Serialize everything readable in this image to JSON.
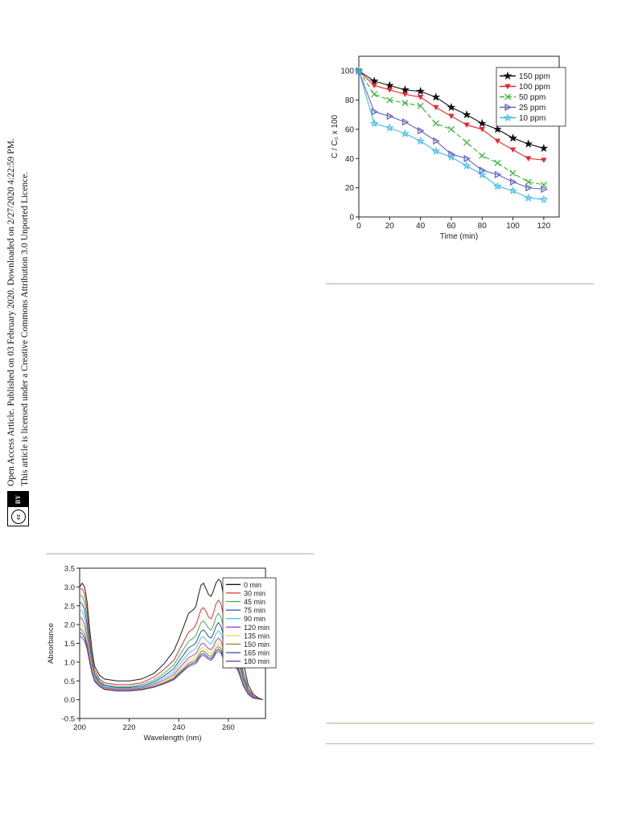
{
  "side_notice": {
    "line1": "Open Access Article. Published on 03 February 2020. Downloaded on 2/27/2020 4:22:59 PM.",
    "line2": "This article is licensed under a Creative Commons Attribution 3.0 Unported Licence.",
    "license_badge": {
      "cc": "cc",
      "by": "BY"
    }
  },
  "chart_data": [
    {
      "type": "line",
      "xlabel": "Time (min)",
      "ylabel": "C / C₀ x 100",
      "xlim": [
        0,
        130
      ],
      "ylim": [
        0,
        110
      ],
      "xticks": [
        0,
        20,
        40,
        60,
        80,
        100,
        120
      ],
      "yticks": [
        0,
        20,
        40,
        60,
        80,
        100
      ],
      "legend_position": "top-right",
      "grid": false,
      "x": [
        0,
        10,
        20,
        30,
        40,
        50,
        60,
        70,
        80,
        90,
        100,
        110,
        120
      ],
      "series": [
        {
          "name": "150 ppm",
          "color": "#111111",
          "marker": "star",
          "dash": "",
          "values": [
            100,
            93,
            90,
            87,
            86,
            82,
            75,
            70,
            64,
            60,
            54,
            50,
            47
          ]
        },
        {
          "name": "100 ppm",
          "color": "#e8262b",
          "marker": "triangle-down",
          "dash": "",
          "values": [
            100,
            90,
            87,
            84,
            82,
            75,
            69,
            63,
            60,
            52,
            46,
            40,
            39
          ]
        },
        {
          "name": "50 ppm",
          "color": "#33b333",
          "marker": "x",
          "dash": "6,3",
          "values": [
            100,
            84,
            80,
            78,
            76,
            64,
            60,
            51,
            42,
            37,
            30,
            24,
            22
          ]
        },
        {
          "name": "25 ppm",
          "color": "#6666c2",
          "marker": "triangle-right",
          "dash": "",
          "values": [
            100,
            72,
            69,
            65,
            59,
            52,
            43,
            40,
            32,
            29,
            24,
            20,
            19
          ]
        },
        {
          "name": "10 ppm",
          "color": "#3fb9ea",
          "marker": "star-open",
          "dash": "",
          "values": [
            100,
            64,
            61,
            57,
            52,
            45,
            41,
            35,
            29,
            21,
            18,
            13,
            12
          ]
        }
      ]
    },
    {
      "type": "line",
      "xlabel": "Wavelength (nm)",
      "ylabel": "Absorbance",
      "xlim": [
        200,
        275
      ],
      "ylim": [
        -0.5,
        3.5
      ],
      "xticks": [
        200,
        220,
        240,
        260
      ],
      "yticks": [
        -0.5,
        0.0,
        0.5,
        1.0,
        1.5,
        2.0,
        2.5,
        3.0,
        3.5
      ],
      "legend_position": "top-right",
      "grid": false,
      "x": [
        200,
        201,
        202,
        203,
        204,
        205,
        206,
        208,
        210,
        215,
        220,
        225,
        230,
        234,
        238,
        240,
        242,
        244,
        245,
        246,
        247,
        248,
        249,
        250,
        251,
        252,
        253,
        254,
        255,
        256,
        257,
        258,
        259,
        260,
        261,
        262,
        263,
        264,
        265,
        266,
        268,
        270,
        272,
        274
      ],
      "series": [
        {
          "name": "0 min",
          "color": "#1a1a1a",
          "values": [
            3.0,
            3.1,
            3.0,
            2.6,
            1.9,
            1.3,
            0.9,
            0.65,
            0.55,
            0.5,
            0.5,
            0.55,
            0.7,
            0.95,
            1.3,
            1.6,
            1.95,
            2.3,
            2.35,
            2.4,
            2.5,
            2.8,
            3.05,
            3.1,
            2.95,
            2.8,
            2.75,
            2.9,
            3.1,
            3.2,
            3.15,
            2.8,
            2.4,
            2.2,
            2.15,
            2.3,
            2.3,
            2.0,
            1.5,
            1.0,
            0.4,
            0.15,
            0.05,
            0.0
          ]
        },
        {
          "name": "30 min",
          "color": "#e03030",
          "values": [
            2.95,
            2.95,
            2.8,
            2.4,
            1.7,
            1.15,
            0.8,
            0.55,
            0.45,
            0.4,
            0.4,
            0.45,
            0.6,
            0.8,
            1.05,
            1.3,
            1.55,
            1.8,
            1.85,
            1.9,
            2.0,
            2.2,
            2.4,
            2.45,
            2.35,
            2.2,
            2.15,
            2.3,
            2.55,
            2.65,
            2.55,
            2.25,
            1.9,
            1.75,
            1.7,
            1.8,
            1.75,
            1.55,
            1.15,
            0.75,
            0.3,
            0.1,
            0.03,
            0.0
          ]
        },
        {
          "name": "45 min",
          "color": "#3fb34f",
          "values": [
            2.8,
            2.75,
            2.6,
            2.2,
            1.55,
            1.05,
            0.72,
            0.5,
            0.4,
            0.35,
            0.35,
            0.4,
            0.52,
            0.7,
            0.92,
            1.15,
            1.35,
            1.55,
            1.6,
            1.65,
            1.72,
            1.9,
            2.05,
            2.1,
            2.0,
            1.9,
            1.85,
            1.98,
            2.2,
            2.3,
            2.2,
            1.95,
            1.65,
            1.52,
            1.48,
            1.56,
            1.52,
            1.35,
            1.0,
            0.65,
            0.25,
            0.08,
            0.02,
            0.0
          ]
        },
        {
          "name": "75 min",
          "color": "#2b4fa8",
          "values": [
            2.6,
            2.55,
            2.4,
            2.0,
            1.45,
            0.98,
            0.67,
            0.46,
            0.37,
            0.32,
            0.32,
            0.36,
            0.47,
            0.63,
            0.82,
            1.02,
            1.2,
            1.38,
            1.42,
            1.46,
            1.52,
            1.68,
            1.82,
            1.86,
            1.78,
            1.68,
            1.64,
            1.76,
            1.95,
            2.05,
            1.96,
            1.73,
            1.46,
            1.35,
            1.32,
            1.39,
            1.35,
            1.2,
            0.9,
            0.58,
            0.22,
            0.07,
            0.02,
            0.0
          ]
        },
        {
          "name": "90 min",
          "color": "#4ec4ec",
          "values": [
            2.4,
            2.35,
            2.2,
            1.85,
            1.35,
            0.92,
            0.63,
            0.43,
            0.34,
            0.3,
            0.3,
            0.33,
            0.43,
            0.57,
            0.74,
            0.92,
            1.08,
            1.24,
            1.28,
            1.32,
            1.37,
            1.52,
            1.65,
            1.68,
            1.6,
            1.52,
            1.48,
            1.59,
            1.76,
            1.84,
            1.76,
            1.56,
            1.32,
            1.22,
            1.19,
            1.25,
            1.22,
            1.08,
            0.81,
            0.52,
            0.2,
            0.06,
            0.02,
            0.0
          ]
        },
        {
          "name": "120 min",
          "color": "#b53fb5",
          "values": [
            2.2,
            2.15,
            2.0,
            1.7,
            1.25,
            0.86,
            0.59,
            0.41,
            0.32,
            0.28,
            0.28,
            0.31,
            0.4,
            0.52,
            0.67,
            0.83,
            0.97,
            1.12,
            1.15,
            1.19,
            1.23,
            1.36,
            1.48,
            1.5,
            1.43,
            1.36,
            1.33,
            1.42,
            1.57,
            1.64,
            1.57,
            1.39,
            1.18,
            1.09,
            1.06,
            1.12,
            1.09,
            0.97,
            0.73,
            0.47,
            0.18,
            0.06,
            0.02,
            0.0
          ]
        },
        {
          "name": "135 min",
          "color": "#ecd93a",
          "values": [
            2.05,
            2.0,
            1.88,
            1.6,
            1.18,
            0.82,
            0.56,
            0.39,
            0.3,
            0.26,
            0.26,
            0.29,
            0.37,
            0.48,
            0.62,
            0.77,
            0.9,
            1.04,
            1.07,
            1.1,
            1.14,
            1.26,
            1.37,
            1.39,
            1.33,
            1.26,
            1.23,
            1.32,
            1.46,
            1.52,
            1.46,
            1.29,
            1.1,
            1.01,
            0.99,
            1.04,
            1.01,
            0.9,
            0.68,
            0.44,
            0.17,
            0.05,
            0.02,
            0.0
          ]
        },
        {
          "name": "150 min",
          "color": "#7a8a2a",
          "values": [
            1.9,
            1.85,
            1.75,
            1.5,
            1.1,
            0.77,
            0.53,
            0.37,
            0.29,
            0.25,
            0.25,
            0.28,
            0.35,
            0.45,
            0.58,
            0.72,
            0.84,
            0.97,
            1.0,
            1.03,
            1.07,
            1.18,
            1.28,
            1.3,
            1.24,
            1.18,
            1.15,
            1.23,
            1.36,
            1.42,
            1.36,
            1.2,
            1.02,
            0.94,
            0.92,
            0.97,
            0.94,
            0.84,
            0.63,
            0.41,
            0.16,
            0.05,
            0.02,
            0.0
          ]
        },
        {
          "name": "165 min",
          "color": "#3344aa",
          "values": [
            1.8,
            1.75,
            1.65,
            1.42,
            1.05,
            0.73,
            0.51,
            0.36,
            0.28,
            0.24,
            0.24,
            0.27,
            0.34,
            0.43,
            0.55,
            0.68,
            0.8,
            0.92,
            0.95,
            0.98,
            1.01,
            1.12,
            1.21,
            1.23,
            1.18,
            1.12,
            1.09,
            1.17,
            1.29,
            1.35,
            1.29,
            1.14,
            0.97,
            0.9,
            0.88,
            0.92,
            0.9,
            0.8,
            0.6,
            0.39,
            0.15,
            0.05,
            0.02,
            0.0
          ]
        },
        {
          "name": "180 min",
          "color": "#7f3fa8",
          "values": [
            1.7,
            1.65,
            1.56,
            1.35,
            1.0,
            0.7,
            0.49,
            0.35,
            0.27,
            0.23,
            0.23,
            0.26,
            0.33,
            0.42,
            0.53,
            0.65,
            0.77,
            0.88,
            0.91,
            0.94,
            0.97,
            1.07,
            1.16,
            1.18,
            1.13,
            1.07,
            1.05,
            1.12,
            1.24,
            1.29,
            1.24,
            1.09,
            0.93,
            0.86,
            0.84,
            0.88,
            0.86,
            0.76,
            0.57,
            0.37,
            0.14,
            0.04,
            0.02,
            0.0
          ]
        }
      ]
    }
  ]
}
